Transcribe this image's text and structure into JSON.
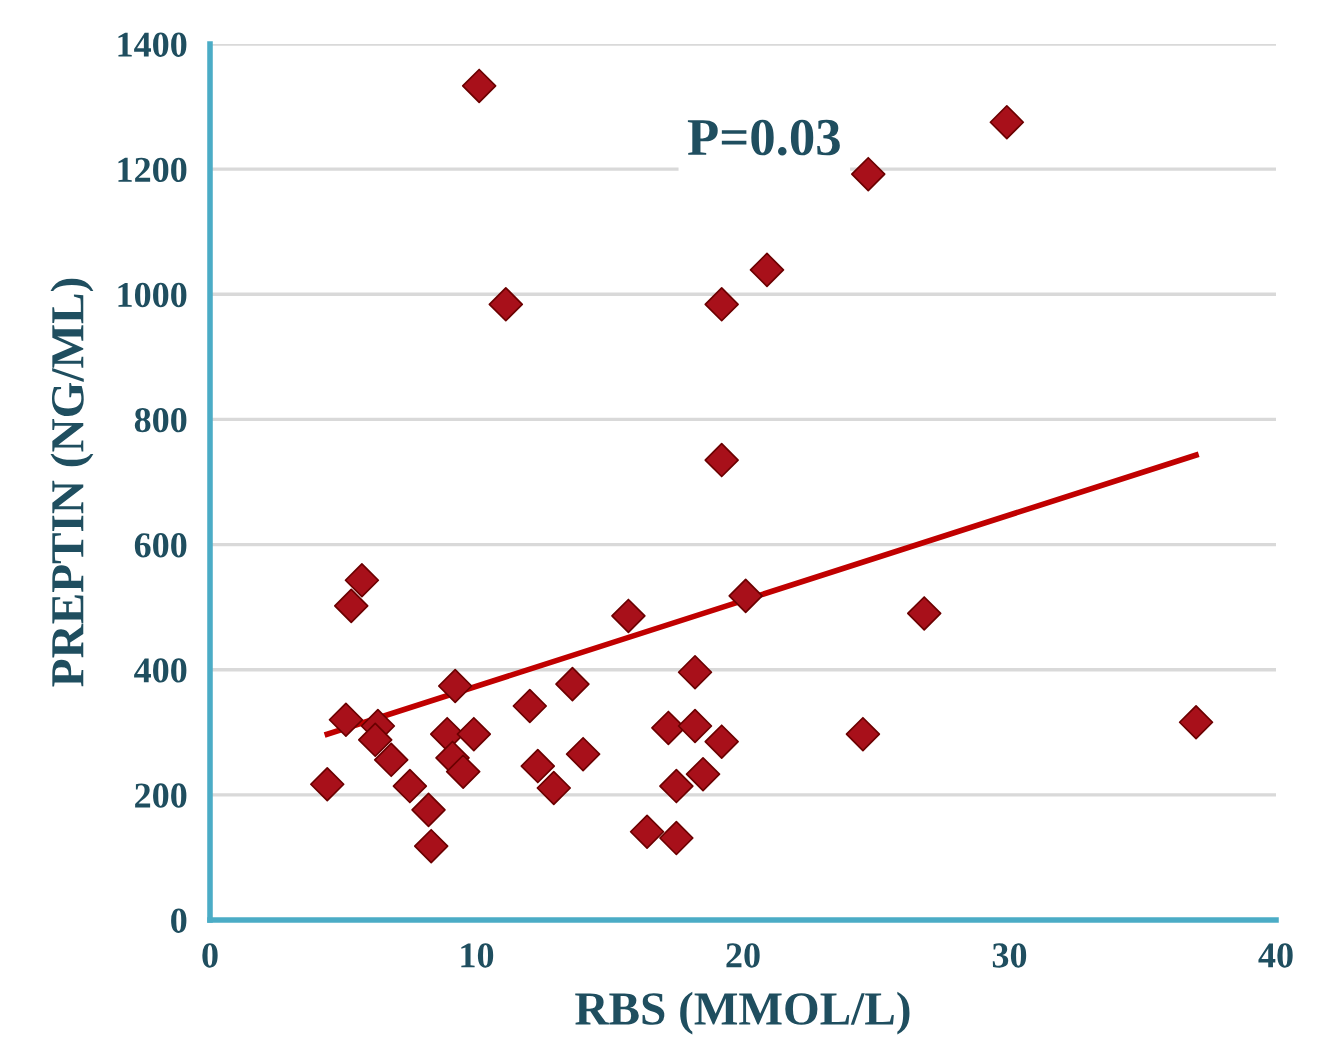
{
  "chart_data": {
    "type": "scatter",
    "xlabel": "RBS (MMOL/L)",
    "ylabel": "PREPTIN (NG/ML)",
    "xlim": [
      0,
      40
    ],
    "xticks": [
      0,
      10,
      20,
      30,
      40
    ],
    "ylim": [
      0,
      1400
    ],
    "yticks": [
      0,
      200,
      400,
      600,
      800,
      1000,
      1200,
      1400
    ],
    "grid": "y",
    "annotations": [
      "P=0.03"
    ],
    "series": [
      {
        "color": "#a8101a",
        "marker": "diamond",
        "x": [
          4.4,
          5.1,
          5.3,
          5.7,
          6.3,
          6.2,
          6.8,
          7.5,
          8.2,
          8.3,
          9.2,
          8.9,
          9.9,
          9.1,
          9.5,
          12.0,
          12.3,
          12.9,
          15.7,
          20.1,
          26.8,
          13.6,
          18.2,
          17.2,
          18.2,
          19.2,
          14.0,
          24.5,
          18.5,
          17.5,
          16.4,
          17.5,
          37.0,
          10.1,
          29.9,
          24.7,
          11.1,
          19.2,
          20.9,
          19.2
        ],
        "values": [
          217,
          320,
          502,
          543,
          310,
          288,
          256,
          214,
          176,
          118,
          374,
          297,
          297,
          259,
          237,
          342,
          246,
          211,
          486,
          518,
          490,
          377,
          396,
          307,
          310,
          285,
          265,
          297,
          233,
          214,
          141,
          131,
          316,
          1333,
          1275,
          1192,
          984,
          984,
          1039,
          735
        ]
      },
      {
        "type": "line",
        "marker": "none",
        "color": "#c00000",
        "x": [
          4.4,
          37.0
        ],
        "values": [
          297,
          743
        ]
      }
    ]
  }
}
